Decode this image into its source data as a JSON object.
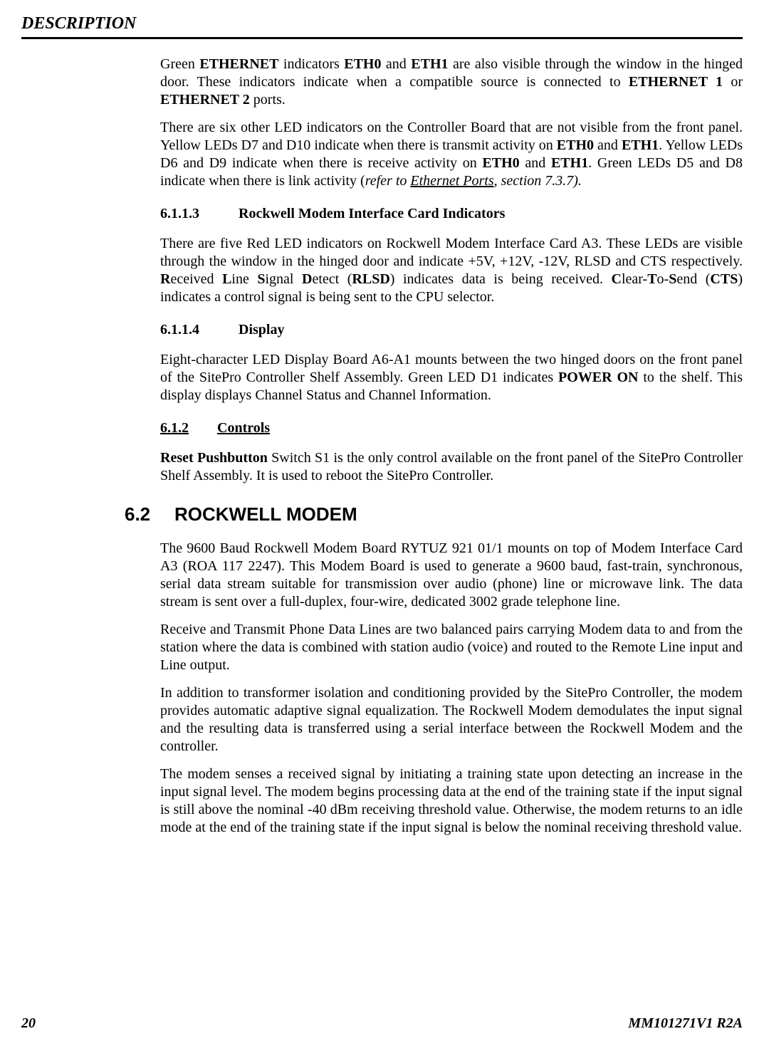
{
  "colors": {
    "text": "#000000",
    "background": "#ffffff",
    "rule": "#000000"
  },
  "typography": {
    "body_family": "Times New Roman",
    "body_size_pt": 15,
    "h2_family": "Arial",
    "h2_size_pt": 20,
    "line_height": 1.25
  },
  "header": {
    "title": "DESCRIPTION"
  },
  "footer": {
    "page": "20",
    "doc_id": "MM101271V1 R2A"
  },
  "sections": {
    "p1_a": "Green ",
    "p1_eth": "ETHERNET",
    "p1_b": " indicators ",
    "p1_eth0": "ETH0",
    "p1_c": " and ",
    "p1_eth1": "ETH1",
    "p1_d": " are also visible through the window in the hinged door. These indicators indicate when a compatible source is connected to ",
    "p1_e1": "ETHERNET 1",
    "p1_e": " or ",
    "p1_e2": "ETHERNET 2",
    "p1_f": " ports.",
    "p2_a": "There are six other LED indicators on the Controller Board that are not visible from the front panel. Yellow LEDs D7 and D10 indicate when there is transmit activity on ",
    "p2_eth0": "ETH0",
    "p2_b": " and ",
    "p2_eth1a": "ETH1",
    "p2_c": ". Yellow LEDs D6 and D9 indicate when there is receive activity on ",
    "p2_eth0b": "ETH0",
    "p2_d": " and ",
    "p2_eth1b": "ETH1",
    "p2_e": ". Green LEDs D5 and D8 indicate when there is link activity (",
    "p2_ref": "refer to ",
    "p2_link": "Ethernet Ports",
    "p2_sec": ", section 7.3.7).",
    "h_6113_num": "6.1.1.3",
    "h_6113_title": "Rockwell Modem Interface Card Indicators",
    "p3_a": "There are five Red LED indicators on Rockwell Modem Interface Card A3. These LEDs are visible through the window in the hinged door and indicate +5V, +12V, -12V, RLSD and CTS respectively. ",
    "p3_R": "R",
    "p3_r": "eceived ",
    "p3_L": "L",
    "p3_l": "ine ",
    "p3_S": "S",
    "p3_s": "ignal ",
    "p3_D": "D",
    "p3_d": "etect (",
    "p3_rlsd": "RLSD",
    "p3_b": ") indicates data is being received. ",
    "p3_C": "C",
    "p3_c": "lear-",
    "p3_T": "T",
    "p3_t": "o-",
    "p3_S2": "S",
    "p3_s2": "end (",
    "p3_cts": "CTS",
    "p3_e": ") indicates a control signal is being sent to the CPU selector.",
    "h_6114_num": "6.1.1.4",
    "h_6114_title": "Display",
    "p4_a": "Eight-character LED Display Board A6-A1 mounts between the two hinged doors on the front panel of the SitePro Controller Shelf Assembly. Green LED D1 indicates ",
    "p4_pow": "POWER ON",
    "p4_b": " to the shelf. This display displays Channel Status and Channel Information.",
    "h_612_num": "6.1.2",
    "h_612_title": "Controls",
    "p5_reset": "Reset Pushbutton",
    "p5_a": " Switch S1 is the only control available on the front panel of the SitePro Controller Shelf Assembly. It is used to reboot the SitePro Controller.",
    "h_62_num": "6.2",
    "h_62_title": "ROCKWELL MODEM",
    "p6": "The 9600 Baud Rockwell Modem Board RYTUZ 921 01/1 mounts on top of Modem Interface Card A3 (ROA 117 2247). This Modem Board is used to generate a 9600 baud, fast-train, synchronous, serial data stream suitable for transmission over audio (phone) line or microwave link. The data stream is sent over a full-duplex, four-wire, dedicated 3002 grade telephone line.",
    "p7": "Receive and Transmit Phone Data Lines are two balanced pairs carrying Modem data to and from the station where the data is combined with station audio (voice) and routed to the Remote Line input and Line output.",
    "p8": "In addition to transformer isolation and conditioning provided by the SitePro Controller, the modem provides automatic adaptive signal equalization. The Rockwell Modem demodulates the input signal and the resulting data is transferred using a serial interface between the Rockwell Modem and the controller.",
    "p9": "The modem senses a received signal by initiating a training state upon detecting an increase in the input signal level. The modem begins processing data at the end of the training state if the input signal is still above the nominal -40 dBm receiving threshold value. Otherwise, the modem returns to an idle mode at the end of the training state if the input signal is below the nominal receiving threshold value."
  }
}
